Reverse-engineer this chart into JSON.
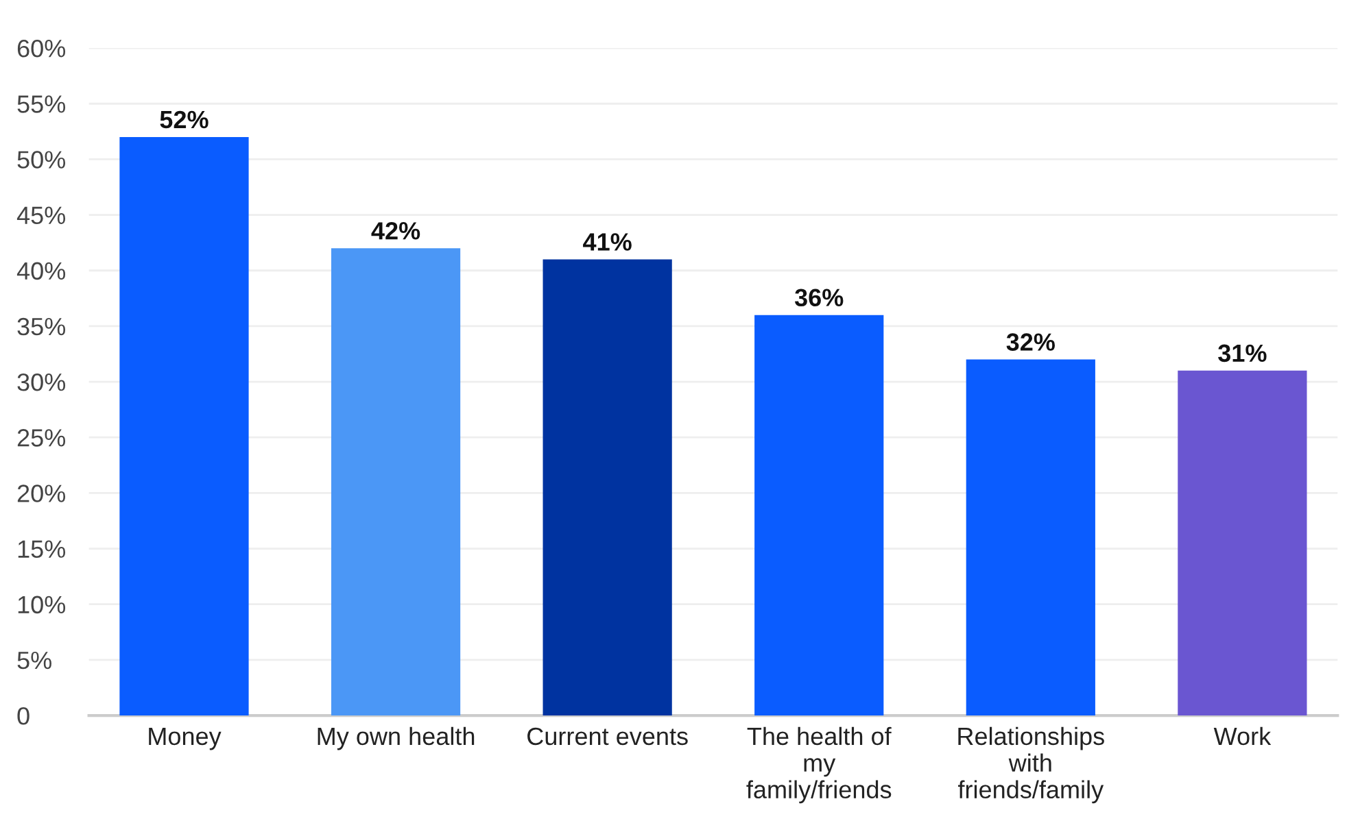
{
  "chart_data": {
    "type": "bar",
    "categories": [
      "Money",
      "My own health",
      "Current events",
      "The health of\nmy\nfamily/friends",
      "Relationships\nwith\nfriends/family",
      "Work"
    ],
    "values": [
      52,
      42,
      41,
      36,
      32,
      31
    ],
    "colors": [
      "#0a5cff",
      "#4b97f6",
      "#0033a0",
      "#0a5cff",
      "#0a5cff",
      "#6a56d1"
    ],
    "value_labels": [
      "52%",
      "42%",
      "41%",
      "36%",
      "32%",
      "31%"
    ],
    "ylim": [
      0,
      60
    ],
    "yticks": [
      0,
      {
        "value": 5,
        "label": "5%"
      },
      {
        "value": 10,
        "label": "10%"
      },
      {
        "value": 15,
        "label": "15%"
      },
      {
        "value": 20,
        "label": "20%"
      },
      {
        "value": 25,
        "label": "25%"
      },
      {
        "value": 30,
        "label": "30%"
      },
      {
        "value": 35,
        "label": "35%"
      },
      {
        "value": 40,
        "label": "40%"
      },
      {
        "value": 45,
        "label": "45%"
      },
      {
        "value": 50,
        "label": "50%"
      },
      {
        "value": 55,
        "label": "55%"
      },
      {
        "value": 60,
        "label": "60%"
      }
    ],
    "grid": "y"
  }
}
